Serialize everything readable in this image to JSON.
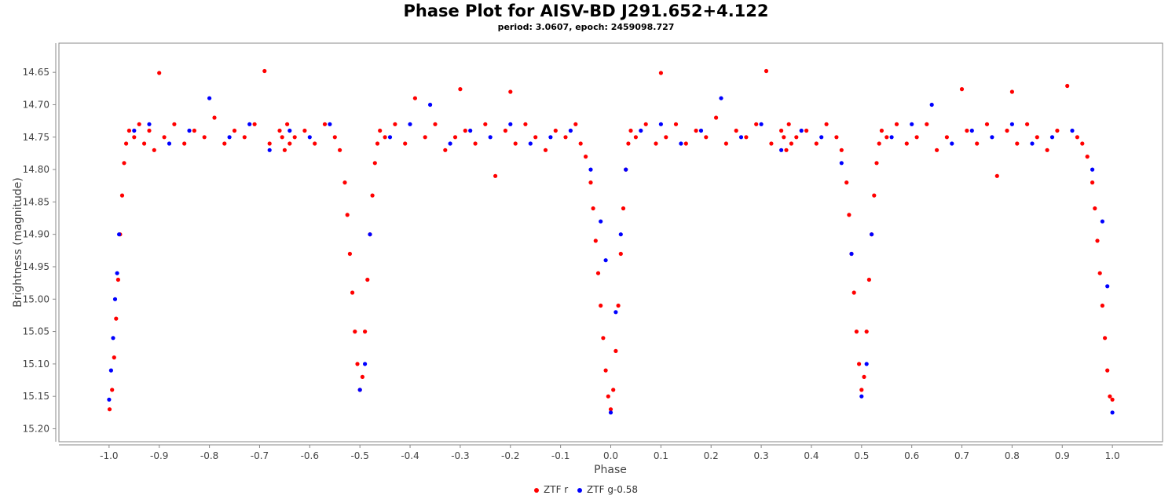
{
  "chart_data": {
    "type": "scatter",
    "title": "Phase Plot for AISV-BD J291.652+4.122",
    "subtitle": "period: 3.0607, epoch: 2459098.727",
    "xlabel": "Phase",
    "ylabel": "Brightness (magnitude)",
    "xlim": [
      -1.1,
      1.1
    ],
    "ylim": [
      15.22,
      14.605
    ],
    "y_inverted": true,
    "xticks": [
      "-1.0",
      "-0.9",
      "-0.8",
      "-0.7",
      "-0.6",
      "-0.5",
      "-0.4",
      "-0.3",
      "-0.2",
      "-0.1",
      "0.0",
      "0.1",
      "0.2",
      "0.3",
      "0.4",
      "0.5",
      "0.6",
      "0.7",
      "0.8",
      "0.9",
      "1.0"
    ],
    "yticks": [
      "14.65",
      "14.70",
      "14.75",
      "14.80",
      "14.85",
      "14.90",
      "14.95",
      "15.00",
      "15.05",
      "15.10",
      "15.15",
      "15.20"
    ],
    "grid": false,
    "legend_position": "bottom",
    "series": [
      {
        "name": "ZTF r",
        "color": "#ff0000",
        "points": [
          [
            -0.999,
            15.17
          ],
          [
            -0.994,
            15.14
          ],
          [
            -0.99,
            15.09
          ],
          [
            -0.986,
            15.03
          ],
          [
            -0.982,
            14.97
          ],
          [
            -0.978,
            14.9
          ],
          [
            -0.974,
            14.84
          ],
          [
            -0.97,
            14.79
          ],
          [
            -0.966,
            14.76
          ],
          [
            -0.96,
            14.74
          ],
          [
            -0.95,
            14.75
          ],
          [
            -0.94,
            14.73
          ],
          [
            -0.93,
            14.76
          ],
          [
            -0.92,
            14.74
          ],
          [
            -0.91,
            14.77
          ],
          [
            -0.9,
            14.651
          ],
          [
            -0.89,
            14.75
          ],
          [
            -0.87,
            14.73
          ],
          [
            -0.85,
            14.76
          ],
          [
            -0.83,
            14.74
          ],
          [
            -0.81,
            14.75
          ],
          [
            -0.79,
            14.72
          ],
          [
            -0.77,
            14.76
          ],
          [
            -0.75,
            14.74
          ],
          [
            -0.73,
            14.75
          ],
          [
            -0.71,
            14.73
          ],
          [
            -0.69,
            14.648
          ],
          [
            -0.68,
            14.76
          ],
          [
            -0.66,
            14.74
          ],
          [
            -0.655,
            14.75
          ],
          [
            -0.65,
            14.77
          ],
          [
            -0.645,
            14.73
          ],
          [
            -0.64,
            14.76
          ],
          [
            -0.63,
            14.75
          ],
          [
            -0.61,
            14.74
          ],
          [
            -0.59,
            14.76
          ],
          [
            -0.57,
            14.73
          ],
          [
            -0.55,
            14.75
          ],
          [
            -0.54,
            14.77
          ],
          [
            -0.53,
            14.82
          ],
          [
            -0.525,
            14.87
          ],
          [
            -0.52,
            14.93
          ],
          [
            -0.515,
            14.99
          ],
          [
            -0.51,
            15.05
          ],
          [
            -0.505,
            15.1
          ],
          [
            -0.5,
            15.14
          ],
          [
            -0.495,
            15.12
          ],
          [
            -0.49,
            15.05
          ],
          [
            -0.485,
            14.97
          ],
          [
            -0.48,
            14.9
          ],
          [
            -0.475,
            14.84
          ],
          [
            -0.47,
            14.79
          ],
          [
            -0.465,
            14.76
          ],
          [
            -0.46,
            14.74
          ],
          [
            -0.45,
            14.75
          ],
          [
            -0.43,
            14.73
          ],
          [
            -0.41,
            14.76
          ],
          [
            -0.39,
            14.69
          ],
          [
            -0.37,
            14.75
          ],
          [
            -0.35,
            14.73
          ],
          [
            -0.33,
            14.77
          ],
          [
            -0.31,
            14.75
          ],
          [
            -0.3,
            14.676
          ],
          [
            -0.29,
            14.74
          ],
          [
            -0.27,
            14.76
          ],
          [
            -0.25,
            14.73
          ],
          [
            -0.23,
            14.81
          ],
          [
            -0.21,
            14.74
          ],
          [
            -0.2,
            14.68
          ],
          [
            -0.19,
            14.76
          ],
          [
            -0.17,
            14.73
          ],
          [
            -0.15,
            14.75
          ],
          [
            -0.13,
            14.77
          ],
          [
            -0.11,
            14.74
          ],
          [
            -0.09,
            14.75
          ],
          [
            -0.07,
            14.73
          ],
          [
            -0.06,
            14.76
          ],
          [
            -0.05,
            14.78
          ],
          [
            -0.04,
            14.82
          ],
          [
            -0.035,
            14.86
          ],
          [
            -0.03,
            14.91
          ],
          [
            -0.025,
            14.96
          ],
          [
            -0.02,
            15.01
          ],
          [
            -0.015,
            15.06
          ],
          [
            -0.01,
            15.11
          ],
          [
            -0.005,
            15.15
          ],
          [
            0.0,
            15.17
          ],
          [
            0.005,
            15.14
          ],
          [
            0.01,
            15.08
          ],
          [
            0.015,
            15.01
          ],
          [
            0.02,
            14.93
          ],
          [
            0.025,
            14.86
          ],
          [
            0.03,
            14.8
          ],
          [
            0.035,
            14.76
          ],
          [
            0.04,
            14.74
          ],
          [
            0.05,
            14.75
          ],
          [
            0.07,
            14.73
          ],
          [
            0.09,
            14.76
          ],
          [
            0.1,
            14.651
          ],
          [
            0.11,
            14.75
          ],
          [
            0.13,
            14.73
          ],
          [
            0.15,
            14.76
          ],
          [
            0.17,
            14.74
          ],
          [
            0.19,
            14.75
          ],
          [
            0.21,
            14.72
          ],
          [
            0.23,
            14.76
          ],
          [
            0.25,
            14.74
          ],
          [
            0.27,
            14.75
          ],
          [
            0.29,
            14.73
          ],
          [
            0.31,
            14.648
          ],
          [
            0.32,
            14.76
          ],
          [
            0.34,
            14.74
          ],
          [
            0.345,
            14.75
          ],
          [
            0.35,
            14.77
          ],
          [
            0.355,
            14.73
          ],
          [
            0.36,
            14.76
          ],
          [
            0.37,
            14.75
          ],
          [
            0.39,
            14.74
          ],
          [
            0.41,
            14.76
          ],
          [
            0.43,
            14.73
          ],
          [
            0.45,
            14.75
          ],
          [
            0.46,
            14.77
          ],
          [
            0.47,
            14.82
          ],
          [
            0.475,
            14.87
          ],
          [
            0.48,
            14.93
          ],
          [
            0.485,
            14.99
          ],
          [
            0.49,
            15.05
          ],
          [
            0.495,
            15.1
          ],
          [
            0.5,
            15.14
          ],
          [
            0.505,
            15.12
          ],
          [
            0.51,
            15.05
          ],
          [
            0.515,
            14.97
          ],
          [
            0.52,
            14.9
          ],
          [
            0.525,
            14.84
          ],
          [
            0.53,
            14.79
          ],
          [
            0.535,
            14.76
          ],
          [
            0.54,
            14.74
          ],
          [
            0.55,
            14.75
          ],
          [
            0.57,
            14.73
          ],
          [
            0.59,
            14.76
          ],
          [
            0.61,
            14.75
          ],
          [
            0.63,
            14.73
          ],
          [
            0.65,
            14.77
          ],
          [
            0.67,
            14.75
          ],
          [
            0.7,
            14.676
          ],
          [
            0.71,
            14.74
          ],
          [
            0.73,
            14.76
          ],
          [
            0.75,
            14.73
          ],
          [
            0.77,
            14.81
          ],
          [
            0.79,
            14.74
          ],
          [
            0.8,
            14.68
          ],
          [
            0.81,
            14.76
          ],
          [
            0.83,
            14.73
          ],
          [
            0.85,
            14.75
          ],
          [
            0.87,
            14.77
          ],
          [
            0.89,
            14.74
          ],
          [
            0.91,
            14.671
          ],
          [
            0.93,
            14.75
          ],
          [
            0.94,
            14.76
          ],
          [
            0.95,
            14.78
          ],
          [
            0.96,
            14.82
          ],
          [
            0.965,
            14.86
          ],
          [
            0.97,
            14.91
          ],
          [
            0.975,
            14.96
          ],
          [
            0.98,
            15.01
          ],
          [
            0.985,
            15.06
          ],
          [
            0.99,
            15.11
          ],
          [
            0.995,
            15.15
          ],
          [
            1.0,
            15.155
          ]
        ]
      },
      {
        "name": "ZTF g-0.58",
        "color": "#0000ff",
        "points": [
          [
            -1.0,
            15.155
          ],
          [
            -0.996,
            15.11
          ],
          [
            -0.992,
            15.06
          ],
          [
            -0.988,
            15.0
          ],
          [
            -0.984,
            14.96
          ],
          [
            -0.98,
            14.9
          ],
          [
            -0.95,
            14.74
          ],
          [
            -0.92,
            14.73
          ],
          [
            -0.88,
            14.76
          ],
          [
            -0.84,
            14.74
          ],
          [
            -0.8,
            14.69
          ],
          [
            -0.76,
            14.75
          ],
          [
            -0.72,
            14.73
          ],
          [
            -0.68,
            14.77
          ],
          [
            -0.64,
            14.74
          ],
          [
            -0.6,
            14.75
          ],
          [
            -0.56,
            14.73
          ],
          [
            -0.5,
            15.14
          ],
          [
            -0.49,
            15.1
          ],
          [
            -0.48,
            14.9
          ],
          [
            -0.44,
            14.75
          ],
          [
            -0.4,
            14.73
          ],
          [
            -0.36,
            14.7
          ],
          [
            -0.32,
            14.76
          ],
          [
            -0.28,
            14.74
          ],
          [
            -0.24,
            14.75
          ],
          [
            -0.2,
            14.73
          ],
          [
            -0.16,
            14.76
          ],
          [
            -0.12,
            14.75
          ],
          [
            -0.08,
            14.74
          ],
          [
            -0.04,
            14.8
          ],
          [
            -0.02,
            14.88
          ],
          [
            -0.01,
            14.94
          ],
          [
            0.0,
            15.175
          ],
          [
            0.01,
            15.02
          ],
          [
            0.02,
            14.9
          ],
          [
            0.03,
            14.8
          ],
          [
            0.06,
            14.74
          ],
          [
            0.1,
            14.73
          ],
          [
            0.14,
            14.76
          ],
          [
            0.18,
            14.74
          ],
          [
            0.22,
            14.69
          ],
          [
            0.26,
            14.75
          ],
          [
            0.3,
            14.73
          ],
          [
            0.34,
            14.77
          ],
          [
            0.38,
            14.74
          ],
          [
            0.42,
            14.75
          ],
          [
            0.46,
            14.79
          ],
          [
            0.48,
            14.93
          ],
          [
            0.5,
            15.15
          ],
          [
            0.51,
            15.1
          ],
          [
            0.52,
            14.9
          ],
          [
            0.56,
            14.75
          ],
          [
            0.6,
            14.73
          ],
          [
            0.64,
            14.7
          ],
          [
            0.68,
            14.76
          ],
          [
            0.72,
            14.74
          ],
          [
            0.76,
            14.75
          ],
          [
            0.8,
            14.73
          ],
          [
            0.84,
            14.76
          ],
          [
            0.88,
            14.75
          ],
          [
            0.92,
            14.74
          ],
          [
            0.96,
            14.8
          ],
          [
            0.98,
            14.88
          ],
          [
            0.99,
            14.98
          ],
          [
            1.0,
            15.175
          ]
        ]
      }
    ]
  }
}
